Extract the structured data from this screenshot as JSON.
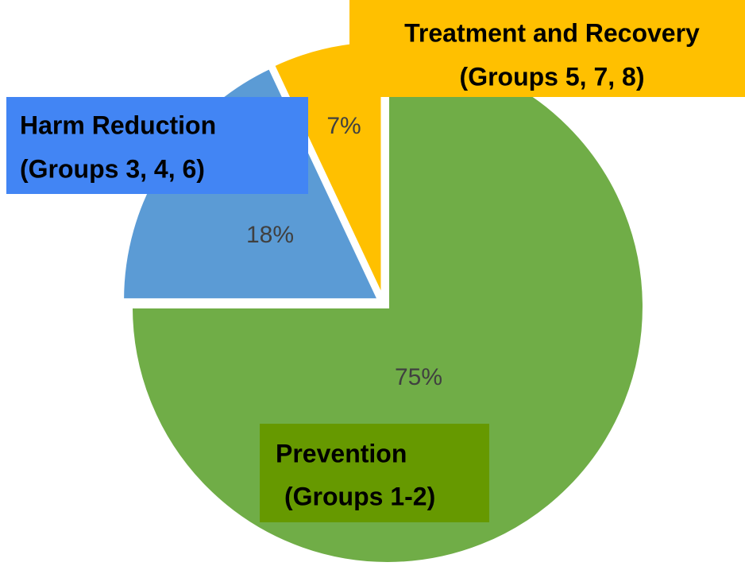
{
  "chart_data": {
    "type": "pie",
    "categories": [
      "Prevention",
      "Harm Reduction",
      "Treatment and Recovery"
    ],
    "groups": [
      "(Groups 1-2)",
      "(Groups 3, 4, 6)",
      "(Groups 5, 7, 8)"
    ],
    "values": [
      75,
      18,
      7
    ],
    "value_labels": [
      "75%",
      "18%",
      "7%"
    ],
    "colors": [
      "#70ad47",
      "#5b9bd5",
      "#ffc000"
    ],
    "label_box_colors": [
      "#669900",
      "#4285f4",
      "#ffc000"
    ]
  }
}
